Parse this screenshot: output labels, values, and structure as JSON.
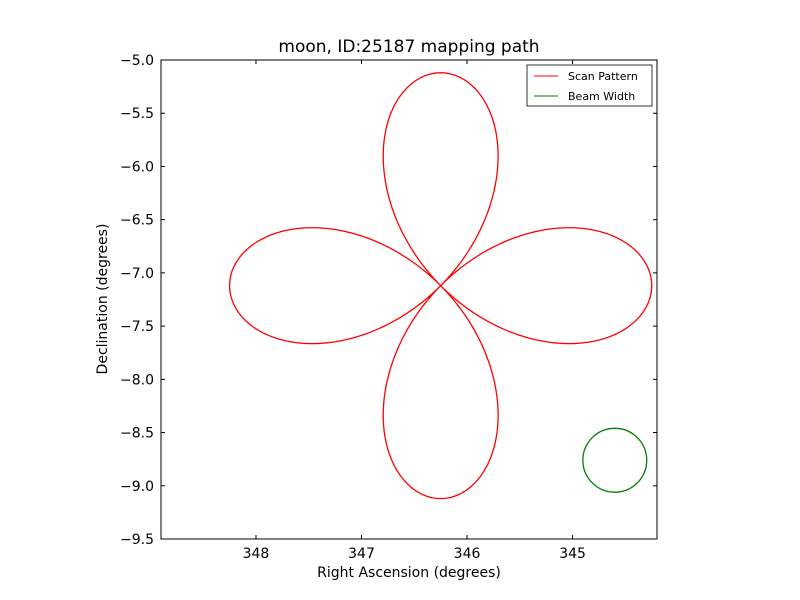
{
  "chart_data": {
    "type": "line",
    "title": "moon, ID:25187 mapping path",
    "xlabel": "Right Ascension (degrees)",
    "ylabel": "Declination (degrees)",
    "xlim": [
      348.9,
      344.2
    ],
    "ylim": [
      -9.5,
      -5.0
    ],
    "x_inverted": true,
    "xticks": [
      348,
      347,
      346,
      345
    ],
    "xtick_labels": [
      "348",
      "347",
      "346",
      "345"
    ],
    "yticks": [
      -5.0,
      -5.5,
      -6.0,
      -6.5,
      -7.0,
      -7.5,
      -8.0,
      -8.5,
      -9.0,
      -9.5
    ],
    "ytick_labels": [
      "−5.0",
      "−5.5",
      "−6.0",
      "−6.5",
      "−7.0",
      "−7.5",
      "−8.0",
      "−8.5",
      "−9.0",
      "−9.5"
    ],
    "grid": false,
    "legend_position": "top-right",
    "series": [
      {
        "name": "Scan Pattern",
        "color": "#ff0000",
        "kind": "rose",
        "center": [
          346.25,
          -7.12
        ],
        "petals": 4,
        "petal_length_ra": 2.0,
        "petal_length_dec": 2.0,
        "orientation": "petals along RA and Dec axes",
        "start_point": [
          348.28,
          -7.12
        ]
      },
      {
        "name": "Beam Width",
        "color": "#008000",
        "kind": "circle",
        "center": [
          344.6,
          -8.76
        ],
        "radius_dec": 0.3
      }
    ],
    "legend": [
      {
        "label": "Scan Pattern",
        "color": "#ff0000"
      },
      {
        "label": "Beam Width",
        "color": "#008000"
      }
    ]
  }
}
